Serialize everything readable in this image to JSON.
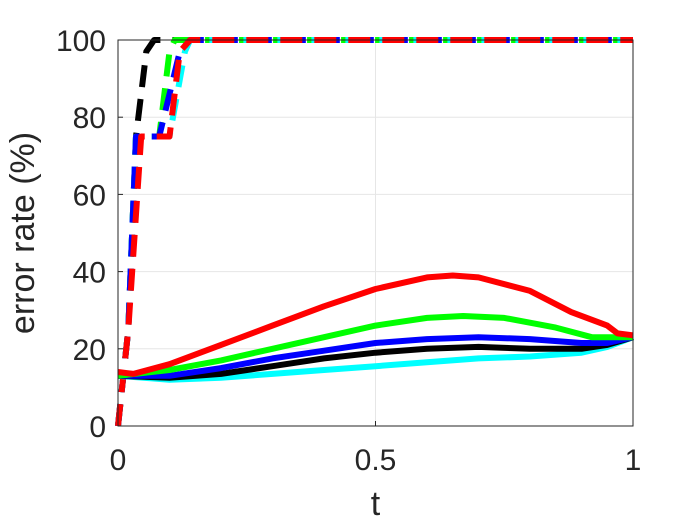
{
  "chart_data": {
    "type": "line",
    "title": "",
    "xlabel": "t",
    "ylabel": "error rate (%)",
    "xlim": [
      0,
      1
    ],
    "ylim": [
      0,
      100
    ],
    "x_ticks": [
      "0",
      "0.5",
      "1"
    ],
    "y_ticks": [
      "0",
      "20",
      "40",
      "60",
      "80",
      "100"
    ],
    "grid": true,
    "legend": "none",
    "series": [
      {
        "style": "dashed",
        "color": "#000000",
        "points": [
          [
            0,
            0
          ],
          [
            0.02,
            25
          ],
          [
            0.035,
            75
          ],
          [
            0.055,
            97
          ],
          [
            0.07,
            100
          ],
          [
            1,
            100
          ]
        ]
      },
      {
        "style": "dashed",
        "color": "#00ff00",
        "points": [
          [
            0,
            0
          ],
          [
            0.02,
            25
          ],
          [
            0.035,
            75
          ],
          [
            0.08,
            75
          ],
          [
            0.1,
            97
          ],
          [
            0.11,
            100
          ],
          [
            1,
            100
          ]
        ]
      },
      {
        "style": "dashed",
        "color": "#00ffff",
        "points": [
          [
            0,
            0
          ],
          [
            0.02,
            25
          ],
          [
            0.035,
            75
          ],
          [
            0.1,
            75
          ],
          [
            0.13,
            97
          ],
          [
            0.14,
            100
          ],
          [
            1,
            100
          ]
        ]
      },
      {
        "style": "dashed",
        "color": "#0000ff",
        "points": [
          [
            0,
            0
          ],
          [
            0.02,
            25
          ],
          [
            0.035,
            75
          ],
          [
            0.08,
            75
          ],
          [
            0.12,
            97
          ],
          [
            0.14,
            100
          ],
          [
            1,
            100
          ]
        ]
      },
      {
        "style": "dashed",
        "color": "#ff0000",
        "points": [
          [
            0,
            0
          ],
          [
            0.02,
            25
          ],
          [
            0.045,
            75
          ],
          [
            0.1,
            75
          ],
          [
            0.12,
            97
          ],
          [
            0.14,
            100
          ],
          [
            1,
            100
          ]
        ]
      },
      {
        "style": "solid",
        "color": "#00ffff",
        "points": [
          [
            0,
            13
          ],
          [
            0.1,
            12
          ],
          [
            0.2,
            12.5
          ],
          [
            0.3,
            13.5
          ],
          [
            0.4,
            14.5
          ],
          [
            0.5,
            15.5
          ],
          [
            0.6,
            16.5
          ],
          [
            0.7,
            17.5
          ],
          [
            0.8,
            18
          ],
          [
            0.9,
            19
          ],
          [
            0.95,
            20.5
          ],
          [
            1,
            23
          ]
        ]
      },
      {
        "style": "solid",
        "color": "#000000",
        "points": [
          [
            0,
            13
          ],
          [
            0.1,
            12.5
          ],
          [
            0.2,
            13.5
          ],
          [
            0.3,
            15.5
          ],
          [
            0.4,
            17.5
          ],
          [
            0.5,
            19
          ],
          [
            0.6,
            20
          ],
          [
            0.7,
            20.5
          ],
          [
            0.8,
            20
          ],
          [
            0.9,
            20
          ],
          [
            0.95,
            21
          ],
          [
            1,
            23
          ]
        ]
      },
      {
        "style": "solid",
        "color": "#0000ff",
        "points": [
          [
            0,
            13
          ],
          [
            0.1,
            13
          ],
          [
            0.2,
            15
          ],
          [
            0.3,
            17.5
          ],
          [
            0.4,
            19.5
          ],
          [
            0.5,
            21.5
          ],
          [
            0.6,
            22.5
          ],
          [
            0.7,
            23
          ],
          [
            0.8,
            22.5
          ],
          [
            0.9,
            21.5
          ],
          [
            0.95,
            21.5
          ],
          [
            1,
            23
          ]
        ]
      },
      {
        "style": "solid",
        "color": "#00ff00",
        "points": [
          [
            0,
            13
          ],
          [
            0.1,
            14.5
          ],
          [
            0.2,
            17
          ],
          [
            0.3,
            20
          ],
          [
            0.4,
            23
          ],
          [
            0.5,
            26
          ],
          [
            0.6,
            28
          ],
          [
            0.67,
            28.5
          ],
          [
            0.75,
            28
          ],
          [
            0.85,
            25.5
          ],
          [
            0.92,
            23
          ],
          [
            1,
            23
          ]
        ]
      },
      {
        "style": "solid",
        "color": "#ff0000",
        "points": [
          [
            0,
            14
          ],
          [
            0.03,
            13.5
          ],
          [
            0.1,
            16
          ],
          [
            0.2,
            21
          ],
          [
            0.3,
            26
          ],
          [
            0.4,
            31
          ],
          [
            0.5,
            35.5
          ],
          [
            0.6,
            38.5
          ],
          [
            0.65,
            39
          ],
          [
            0.7,
            38.5
          ],
          [
            0.8,
            35
          ],
          [
            0.88,
            29.5
          ],
          [
            0.95,
            26
          ],
          [
            0.97,
            24
          ],
          [
            1,
            23.5
          ]
        ]
      }
    ]
  }
}
